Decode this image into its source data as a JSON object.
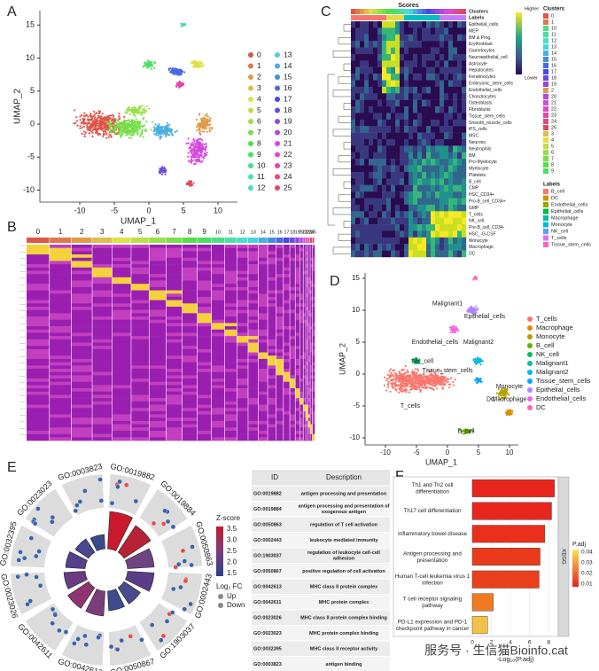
{
  "panels": {
    "A": {
      "label": "A",
      "x_label": "UMAP_1",
      "y_label": "UMAP_2",
      "xticks": [
        -10,
        -5,
        0,
        5,
        10
      ],
      "yticks": [
        -10,
        -5,
        0,
        5,
        10,
        15
      ],
      "legend": [
        "0",
        "1",
        "2",
        "3",
        "4",
        "5",
        "6",
        "7",
        "8",
        "9",
        "10",
        "11",
        "12",
        "13",
        "14",
        "15",
        "16",
        "17",
        "18",
        "19",
        "20",
        "21",
        "22",
        "23",
        "24",
        "25"
      ]
    },
    "B": {
      "label": "B",
      "clusters": [
        "0",
        "1",
        "2",
        "3",
        "4",
        "5",
        "6",
        "7",
        "8",
        "9",
        "10",
        "11",
        "12",
        "13",
        "14",
        "15",
        "16",
        "17",
        "18",
        "19",
        "20",
        "21",
        "22",
        "23",
        "24",
        "25"
      ]
    },
    "C": {
      "label": "C",
      "title": "Scores",
      "annotations": [
        "Clusters",
        "Labels"
      ],
      "rows": [
        "Epithelial_cells",
        "MEP",
        "BM & Prog.",
        "Erythroblast",
        "Gametocytes",
        "Neuroepithelial_cell",
        "Astrocyte",
        "Hepatocytes",
        "Keratinocytes",
        "Embryonic_stem_cells",
        "Endothelial_cells",
        "Chondrocytes",
        "Osteoblasts",
        "Fibroblasts",
        "Tissue_stem_cells",
        "Smooth_muscle_cells",
        "iPS_cells",
        "MSC",
        "Neurons",
        "Neutrophils",
        "BM",
        "Pro-Myelocyte",
        "Myelocyte",
        "Platelets",
        "B_cell",
        "CMP",
        "HSC_CD34+",
        "Pro-B_cell_CD34+",
        "GMP",
        "T_cells",
        "NK_cell",
        "Pre-B_cell_CD34-",
        "HSC_-G-CSF",
        "Monocyte",
        "Macrophage",
        "DC"
      ],
      "scale_high": "Higher",
      "scale_low": "Lower",
      "clusters_title": "Clusters",
      "clusters": [
        "0",
        "1",
        "10",
        "11",
        "12",
        "13",
        "14",
        "15",
        "16",
        "17",
        "18",
        "19",
        "2",
        "20",
        "21",
        "22",
        "23",
        "24",
        "25",
        "3",
        "4",
        "5",
        "6",
        "7",
        "8",
        "9"
      ],
      "labels_title": "Labels",
      "labels": [
        "B_cell",
        "DC",
        "Endothelial_cells",
        "Epithelial_cells",
        "Macrophage",
        "Monocyte",
        "NK_cell",
        "T_cells",
        "Tissue_stem_cells"
      ]
    },
    "D": {
      "label": "D",
      "x_label": "UMAP_1",
      "y_label": "UMAP_2",
      "xticks": [
        -10,
        -5,
        0,
        5,
        10
      ],
      "yticks": [
        -10,
        -5,
        0,
        5,
        10,
        15
      ],
      "legend": [
        {
          "name": "T_cells",
          "color": "#f8766d"
        },
        {
          "name": "Macrophage",
          "color": "#db8e00"
        },
        {
          "name": "Monocyte",
          "color": "#aea200"
        },
        {
          "name": "B_cell",
          "color": "#64b200"
        },
        {
          "name": "NK_cell",
          "color": "#00bd5c"
        },
        {
          "name": "Malignant1",
          "color": "#00c1a7"
        },
        {
          "name": "Malignant2",
          "color": "#00bade"
        },
        {
          "name": "Tissue_stem_cells",
          "color": "#00a6ff"
        },
        {
          "name": "Epithelial_cells",
          "color": "#b385ff"
        },
        {
          "name": "Endothelial_cells",
          "color": "#ef67eb"
        },
        {
          "name": "DC",
          "color": "#ff63b6"
        }
      ]
    },
    "E": {
      "label": "E",
      "go_terms": [
        "GO:0019882",
        "GO:0019884",
        "GO:0050863",
        "GO:0002443",
        "GO:1903037",
        "GO:0050867",
        "GO:0042613",
        "GO:0042611",
        "GO:0023026",
        "GO:0032395",
        "GO:0023023",
        "GO:0003823"
      ],
      "zscore_title": "Z-score",
      "zscore_ticks": [
        3.5,
        {
          "value": 3,
          "label": "3.0"
        },
        2.5,
        {
          "value": 2,
          "label": "2.0"
        },
        1.5
      ],
      "fc_title": "Log₂ FC",
      "fc_items": [
        "Up",
        "Down"
      ],
      "table": {
        "header": [
          "ID",
          "Description"
        ],
        "rows": [
          [
            "GO:0019882",
            "antigen processing and presentation"
          ],
          [
            "GO:0019884",
            "antigen processing and presentation of exogenous antigen"
          ],
          [
            "GO:0050863",
            "regulation of T cell activation"
          ],
          [
            "GO:0002443",
            "leukocyte mediated immunity"
          ],
          [
            "GO:1903037",
            "regulation of leukocyte cell-cell adhesion"
          ],
          [
            "GO:0050867",
            "positive regulation of cell activation"
          ],
          [
            "GO:0042613",
            "MHC class II protein complex"
          ],
          [
            "GO:0042611",
            "MHC protein complex"
          ],
          [
            "GO:0023026",
            "MHC class II protein complex binding"
          ],
          [
            "GO:0023023",
            "MHC protein complex binding"
          ],
          [
            "GO:0032395",
            "MHC class II receptor activity"
          ],
          [
            "GO:0003823",
            "antigen binding"
          ]
        ]
      }
    },
    "F": {
      "label": "F",
      "type": "bar",
      "strip": "KEGG",
      "categories": [
        "Th1 and Th2 cell differentiation",
        "Th17 cell differentiation",
        "Inflammatory bowel disease",
        "Antigen processing and presentation",
        "Human T-cell leukemia virus 1 infection",
        "T cell receptor signaling pathway",
        "PD-L1 expression and PD-1 checkpoint pathway in cancer"
      ],
      "values": [
        8.6,
        8.3,
        7.6,
        7.1,
        7.0,
        2.2,
        1.6
      ],
      "colors": [
        "#e8261d",
        "#e8261d",
        "#e9301c",
        "#ea3a1c",
        "#eb3f1c",
        "#f07a22",
        "#f5c04a"
      ],
      "xlim": [
        0,
        9
      ],
      "xticks": [
        0,
        2,
        4,
        6,
        8
      ],
      "x_label": "-Log₁₀(P.adj)",
      "legend_title": "P.adj",
      "legend_ticks": [
        0.04,
        0.03,
        0.02,
        0.01
      ]
    },
    "watermark": "服务号 · 生信猫Bioinfo.cat"
  }
}
